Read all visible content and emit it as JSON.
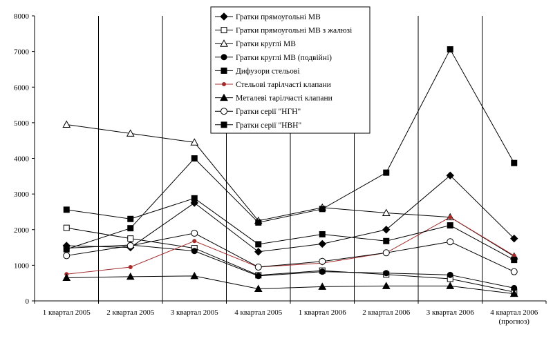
{
  "chart_data": {
    "type": "line",
    "title": "",
    "xlabel": "",
    "ylabel": "",
    "ylim": [
      0,
      8000
    ],
    "yticks": [
      0,
      1000,
      2000,
      3000,
      4000,
      5000,
      6000,
      7000,
      8000
    ],
    "grid": "vertical gridlines between categories",
    "legend_position": "top-center",
    "categories": [
      [
        "1 квартал 2005"
      ],
      [
        "2 квартал 2005"
      ],
      [
        "3 квартал 2005"
      ],
      [
        "4 квартал 2005"
      ],
      [
        "1 квартал 2006"
      ],
      [
        "2 квартал 2006"
      ],
      [
        "3 квартал 2006"
      ],
      [
        "4 квартал 2006",
        "(прогноз)"
      ]
    ],
    "series": [
      {
        "name": "Гратки прямоугольні МВ",
        "marker": "diamond-filled",
        "color": "#000000",
        "values": [
          1550,
          1500,
          2750,
          1380,
          1600,
          2000,
          3520,
          1750
        ]
      },
      {
        "name": "Гратки прямоугольні МВ з жалюзі",
        "marker": "square-open",
        "color": "#000000",
        "values": [
          2050,
          1750,
          1480,
          720,
          850,
          740,
          620,
          250
        ]
      },
      {
        "name": "Гратки круглі МВ",
        "marker": "triangle-open",
        "color": "#000000",
        "values": [
          4950,
          4700,
          4450,
          2250,
          2620,
          2470,
          2350,
          1250
        ]
      },
      {
        "name": "Гратки круглі МВ (подвійні)",
        "marker": "circle-filled",
        "color": "#000000",
        "values": [
          1480,
          1570,
          1400,
          700,
          820,
          780,
          730,
          360
        ]
      },
      {
        "name": "Дифузори стельові",
        "marker": "square-filled",
        "color": "#000000",
        "values": [
          1450,
          2040,
          4000,
          2200,
          2580,
          3600,
          7060,
          3870
        ]
      },
      {
        "name": "Стельові тарілчасті клапани",
        "marker": "circle-small",
        "color": "#a52a2a",
        "values": [
          750,
          950,
          1680,
          950,
          1060,
          1350,
          2350,
          1270
        ]
      },
      {
        "name": "Металеві тарілчасті клапани",
        "marker": "triangle-filled",
        "color": "#000000",
        "values": [
          650,
          680,
          700,
          340,
          400,
          420,
          420,
          200
        ]
      },
      {
        "name": "Гратки серії \"НГН\"",
        "marker": "circle-open",
        "color": "#000000",
        "values": [
          1270,
          1550,
          1900,
          950,
          1110,
          1350,
          1660,
          820
        ]
      },
      {
        "name": "Гратки серії \"НВН\"",
        "marker": "square-filled",
        "color": "#000000",
        "values": [
          2560,
          2300,
          2880,
          1590,
          1870,
          1680,
          2120,
          1150
        ]
      }
    ]
  }
}
